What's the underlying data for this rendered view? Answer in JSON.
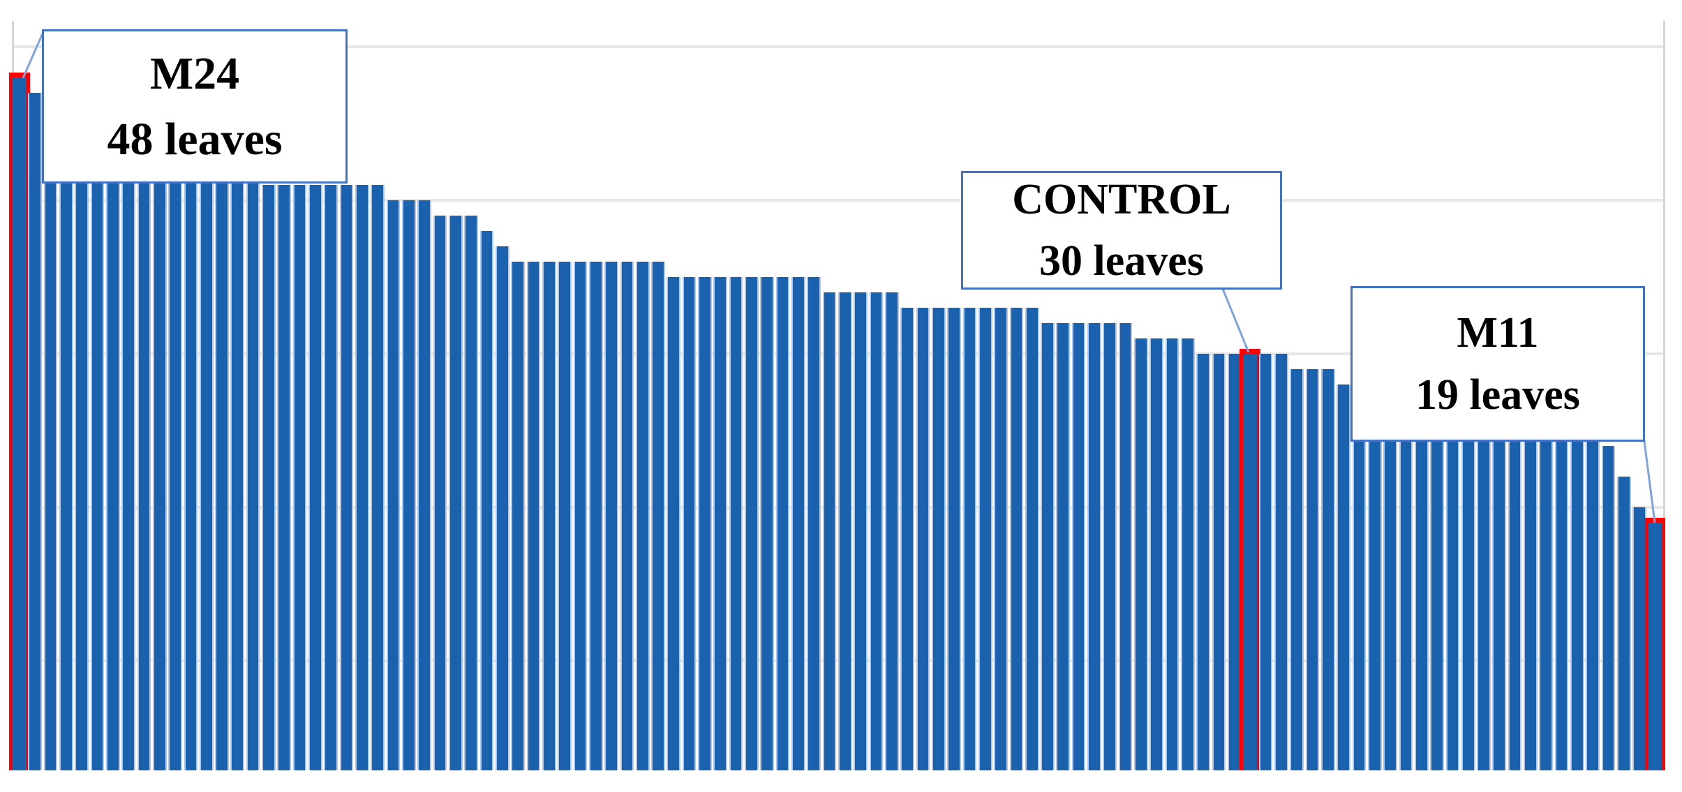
{
  "annotations": {
    "m24": {
      "line1": "M24",
      "line2": "48 leaves"
    },
    "control": {
      "line1": "CONTROL",
      "line2": "30 leaves"
    },
    "m11": {
      "line1": "M11",
      "line2": "19 leaves"
    }
  },
  "colors": {
    "bar_fill": "#1a62ad",
    "bar_separator": "#b3c8e8",
    "highlight_outline": "#fe0000",
    "gridline": "#e7e7e7",
    "axis_line": "#d6d6d6",
    "callout_border": "#4472c4",
    "leader_line": "#7fa4db",
    "text": "#000000"
  },
  "chart_data": {
    "type": "bar",
    "title": "",
    "xlabel": "",
    "ylabel": "",
    "description_of_visible_content": "Sorted descending bar chart of number of leaves per plant; axis labels cropped out of the image; only gridlines, bars, and three callout-labelled red-outlined bars are visible",
    "n_bars": 106,
    "values": [
      48,
      47,
      46,
      45,
      45,
      45,
      44,
      44,
      44,
      43,
      43,
      43,
      42,
      42,
      42,
      42,
      41,
      41,
      41,
      41,
      41,
      41,
      41,
      41,
      40,
      40,
      40,
      39,
      39,
      39,
      38,
      37,
      36,
      36,
      36,
      36,
      36,
      36,
      36,
      36,
      36,
      36,
      35,
      35,
      35,
      35,
      35,
      35,
      35,
      35,
      35,
      35,
      34,
      34,
      34,
      34,
      34,
      33,
      33,
      33,
      33,
      33,
      33,
      33,
      33,
      33,
      32,
      32,
      32,
      32,
      32,
      32,
      31,
      31,
      31,
      31,
      30,
      30,
      30,
      30,
      30,
      30,
      29,
      29,
      29,
      28,
      28,
      28,
      28,
      27,
      27,
      27,
      27,
      26,
      26,
      26,
      26,
      25,
      25,
      25,
      25,
      25,
      24,
      22,
      20,
      19
    ],
    "highlighted_bars": [
      {
        "bar_index": 1,
        "label": "M24",
        "value": 48
      },
      {
        "bar_index": 80,
        "label": "CONTROL",
        "value": 30
      },
      {
        "bar_index": 106,
        "label": "M11",
        "value": 19
      }
    ],
    "red_bar_indices": [
      1,
      80,
      106
    ],
    "gridline_values": [
      10,
      20,
      30,
      40,
      50
    ],
    "ylim": [
      0,
      52
    ],
    "grid": true,
    "legend": false,
    "note": "plot is cropped: bars and axis are cut off below ~3 leaves; no tick labels visible"
  }
}
